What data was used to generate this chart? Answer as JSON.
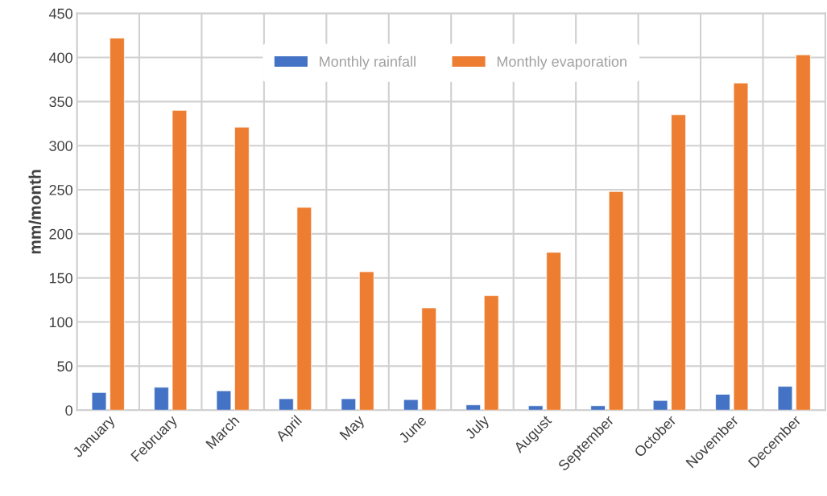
{
  "chart_data": {
    "type": "bar",
    "ylabel": "mm/month",
    "categories": [
      "January",
      "February",
      "March",
      "April",
      "May",
      "June",
      "July",
      "August",
      "September",
      "October",
      "November",
      "December"
    ],
    "series": [
      {
        "name": "Monthly rainfall",
        "color": "#4472c4",
        "values": [
          20,
          26,
          22,
          13,
          13,
          12,
          6,
          5,
          5,
          11,
          18,
          27
        ]
      },
      {
        "name": "Monthly evaporation",
        "color": "#ed7d31",
        "values": [
          422,
          340,
          321,
          230,
          157,
          116,
          130,
          179,
          248,
          335,
          371,
          403
        ]
      }
    ],
    "ylim": [
      0,
      450
    ],
    "yticks": [
      0,
      50,
      100,
      150,
      200,
      250,
      300,
      350,
      400,
      450
    ],
    "grid": true,
    "legend": "top"
  }
}
